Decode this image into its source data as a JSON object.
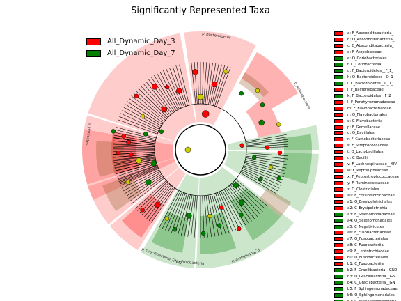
{
  "chart_data": {
    "type": "cladogram",
    "title": "Significantly Represented Taxa",
    "legend": [
      {
        "name": "All_Dynamic_Day_3",
        "color": "#ff0000"
      },
      {
        "name": "All_Dynamic_Day_7",
        "color": "#008000"
      }
    ],
    "clade_labels": [
      {
        "text": "p_Bacteroidetes",
        "group": "All_Dynamic_Day_3",
        "angle": 82
      },
      {
        "text": "p_Actinobacteria",
        "group": "All_Dynamic_Day_7",
        "angle": 28
      },
      {
        "text": "p_Proteobacteria",
        "group": "All_Dynamic_Day_7",
        "angle": -67
      },
      {
        "text": "p_Fusobacteria",
        "group": "All_Dynamic_Day_3",
        "angle": -95
      },
      {
        "text": "p_Gracilibacteria_GN02",
        "group": "All_Dynamic_Day_7",
        "angle": -110
      },
      {
        "text": "p_Firmicutes",
        "group": "All_Dynamic_Day_3",
        "angle": 172
      }
    ],
    "key": [
      {
        "code": "a",
        "taxon": "F_Absconditabacteria_",
        "group": "All_Dynamic_Day_3"
      },
      {
        "code": "b",
        "taxon": "O_Absconditabacteria_",
        "group": "All_Dynamic_Day_3"
      },
      {
        "code": "c",
        "taxon": "C_Absconditabacteria_",
        "group": "All_Dynamic_Day_3"
      },
      {
        "code": "d",
        "taxon": "F_Atopobiaceae",
        "group": "All_Dynamic_Day_3"
      },
      {
        "code": "e",
        "taxon": "O_Coriobacteriales",
        "group": "All_Dynamic_Day_7"
      },
      {
        "code": "f",
        "taxon": "C_Coriobacteriia",
        "group": "All_Dynamic_Day_7"
      },
      {
        "code": "g",
        "taxon": "F_Bacteroidetes__F_1_",
        "group": "All_Dynamic_Day_7"
      },
      {
        "code": "h",
        "taxon": "O_Bacteroidetes__O_1",
        "group": "All_Dynamic_Day_7"
      },
      {
        "code": "i",
        "taxon": "C_Bacteroidetes__C_1_",
        "group": "All_Dynamic_Day_7"
      },
      {
        "code": "j",
        "taxon": "F_Bacteroidaceae",
        "group": "All_Dynamic_Day_3"
      },
      {
        "code": "k",
        "taxon": "F_Bacteroidales__F_2_",
        "group": "All_Dynamic_Day_7"
      },
      {
        "code": "l",
        "taxon": "F_Porphyromonadaceae",
        "group": "All_Dynamic_Day_3"
      },
      {
        "code": "m",
        "taxon": "F_Flavobacteriaceae",
        "group": "All_Dynamic_Day_3"
      },
      {
        "code": "n",
        "taxon": "O_Flavobacteriales",
        "group": "All_Dynamic_Day_3"
      },
      {
        "code": "o",
        "taxon": "C_Flavobacteriia",
        "group": "All_Dynamic_Day_3"
      },
      {
        "code": "p",
        "taxon": "F_Gemellaceae",
        "group": "All_Dynamic_Day_3"
      },
      {
        "code": "q",
        "taxon": "O_Bacillales",
        "group": "All_Dynamic_Day_3"
      },
      {
        "code": "r",
        "taxon": "F_Carnobacteriaceae",
        "group": "All_Dynamic_Day_3"
      },
      {
        "code": "s",
        "taxon": "F_Streptococcaceae",
        "group": "All_Dynamic_Day_3"
      },
      {
        "code": "t",
        "taxon": "O_Lactobacillales",
        "group": "All_Dynamic_Day_3"
      },
      {
        "code": "u",
        "taxon": "C_Bacilli",
        "group": "All_Dynamic_Day_3"
      },
      {
        "code": "v",
        "taxon": "F_Lachnospiraceae__XIV",
        "group": "All_Dynamic_Day_3"
      },
      {
        "code": "w",
        "taxon": "F_Peptoniphilaceae",
        "group": "All_Dynamic_Day_3"
      },
      {
        "code": "x",
        "taxon": "F_Peptostreptococcaceae",
        "group": "All_Dynamic_Day_3"
      },
      {
        "code": "y",
        "taxon": "F_Ruminococcaceae",
        "group": "All_Dynamic_Day_3"
      },
      {
        "code": "z",
        "taxon": "O_Clostridiales",
        "group": "All_Dynamic_Day_3"
      },
      {
        "code": "a0",
        "taxon": "F_Erysipelotrichaceae",
        "group": "All_Dynamic_Day_3"
      },
      {
        "code": "a1",
        "taxon": "O_Erysipelotrichales",
        "group": "All_Dynamic_Day_3"
      },
      {
        "code": "a2",
        "taxon": "C_Erysipelotrichia",
        "group": "All_Dynamic_Day_3"
      },
      {
        "code": "a3",
        "taxon": "F_Selenomonadaceae",
        "group": "All_Dynamic_Day_7"
      },
      {
        "code": "a4",
        "taxon": "O_Selenomonadales",
        "group": "All_Dynamic_Day_7"
      },
      {
        "code": "a5",
        "taxon": "C_Negativicutes",
        "group": "All_Dynamic_Day_7"
      },
      {
        "code": "a6",
        "taxon": "F_Fusobacteriaceae",
        "group": "All_Dynamic_Day_3"
      },
      {
        "code": "a7",
        "taxon": "O_Fusobacteriales",
        "group": "All_Dynamic_Day_3"
      },
      {
        "code": "a8",
        "taxon": "C_Fusobacteriia",
        "group": "All_Dynamic_Day_3"
      },
      {
        "code": "a9",
        "taxon": "F_Leptotrichiaceae",
        "group": "All_Dynamic_Day_3"
      },
      {
        "code": "b0",
        "taxon": "O_Fusobacteriales",
        "group": "All_Dynamic_Day_3"
      },
      {
        "code": "b1",
        "taxon": "C_Fusobacteriia",
        "group": "All_Dynamic_Day_3"
      },
      {
        "code": "b2",
        "taxon": "F_Gracilibacteria__GN0",
        "group": "All_Dynamic_Day_7"
      },
      {
        "code": "b3",
        "taxon": "O_Gracilibacteria__GN",
        "group": "All_Dynamic_Day_7"
      },
      {
        "code": "b4",
        "taxon": "C_Gracilibacteria__GN",
        "group": "All_Dynamic_Day_7"
      },
      {
        "code": "b5",
        "taxon": "F_Sphingomonadaceae",
        "group": "All_Dynamic_Day_7"
      },
      {
        "code": "b6",
        "taxon": "O_Sphingomonadales",
        "group": "All_Dynamic_Day_7"
      },
      {
        "code": "b7",
        "taxon": "C_Alphaproteobacteria",
        "group": "All_Dynamic_Day_7"
      }
    ]
  }
}
